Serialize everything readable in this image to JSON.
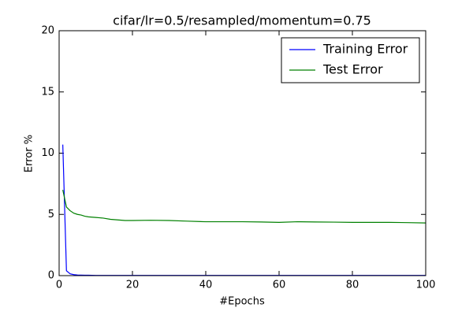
{
  "chart_data": {
    "type": "line",
    "title": "cifar/lr=0.5/resampled/momentum=0.75",
    "xlabel": "#Epochs",
    "ylabel": "Error %",
    "x": [
      1,
      2,
      3,
      4,
      5,
      6,
      7,
      8,
      10,
      12,
      14,
      16,
      18,
      20,
      25,
      30,
      35,
      40,
      45,
      50,
      55,
      60,
      65,
      70,
      75,
      80,
      85,
      90,
      95,
      100
    ],
    "series": [
      {
        "name": "Training Error",
        "color": "#0000ff",
        "values": [
          10.7,
          0.4,
          0.15,
          0.08,
          0.05,
          0.04,
          0.03,
          0.03,
          0.02,
          0.02,
          0.02,
          0.02,
          0.02,
          0.02,
          0.02,
          0.02,
          0.02,
          0.02,
          0.02,
          0.02,
          0.02,
          0.02,
          0.02,
          0.02,
          0.02,
          0.02,
          0.02,
          0.02,
          0.02,
          0.02
        ]
      },
      {
        "name": "Test Error",
        "color": "#008000",
        "values": [
          7.0,
          5.6,
          5.3,
          5.1,
          5.0,
          4.95,
          4.85,
          4.8,
          4.75,
          4.7,
          4.6,
          4.55,
          4.5,
          4.5,
          4.52,
          4.5,
          4.45,
          4.4,
          4.4,
          4.4,
          4.38,
          4.35,
          4.4,
          4.38,
          4.37,
          4.35,
          4.35,
          4.35,
          4.33,
          4.3
        ]
      }
    ],
    "xlim": [
      0,
      100
    ],
    "ylim": [
      0,
      20
    ],
    "xticks": [
      0,
      20,
      40,
      60,
      80,
      100
    ],
    "yticks": [
      0,
      5,
      10,
      15,
      20
    ],
    "legend": "upper right"
  }
}
